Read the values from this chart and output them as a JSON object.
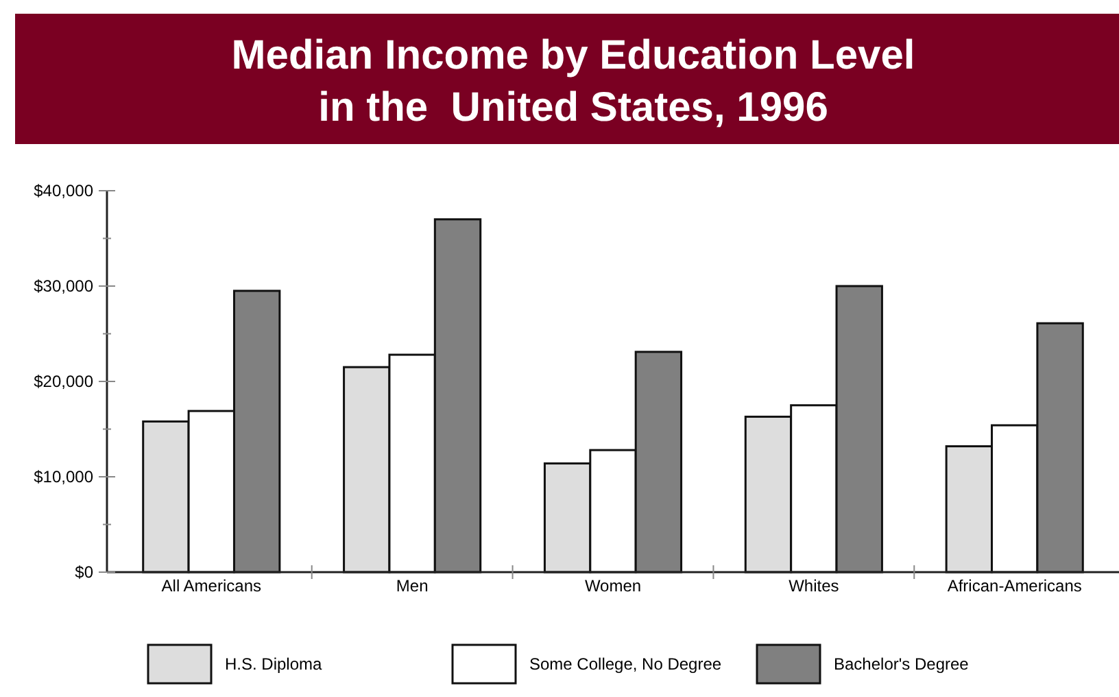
{
  "chart_data": {
    "type": "bar",
    "title": "Median Income by Education Level\nin the  United States, 1996",
    "categories": [
      "All Americans",
      "Men",
      "Women",
      "Whites",
      "African-Americans"
    ],
    "series": [
      {
        "name": "H.S. Diploma",
        "color": "#dddddd",
        "values": [
          15800,
          21500,
          11400,
          16300,
          13200
        ]
      },
      {
        "name": "Some College, No Degree",
        "color": "#ffffff",
        "values": [
          16900,
          22800,
          12800,
          17500,
          15400
        ]
      },
      {
        "name": "Bachelor's Degree",
        "color": "#808080",
        "values": [
          29500,
          37000,
          23100,
          30000,
          26100
        ]
      }
    ],
    "ylim": [
      0,
      40000
    ],
    "yticks": [
      {
        "value": 0,
        "label": "$0"
      },
      {
        "value": 5000,
        "label": null
      },
      {
        "value": 10000,
        "label": "$10,000"
      },
      {
        "value": 15000,
        "label": null
      },
      {
        "value": 20000,
        "label": "$20,000"
      },
      {
        "value": 25000,
        "label": null
      },
      {
        "value": 30000,
        "label": "$30,000"
      },
      {
        "value": 35000,
        "label": null
      },
      {
        "value": 40000,
        "label": "$40,000"
      }
    ],
    "grid": false,
    "legend": "bottom"
  }
}
